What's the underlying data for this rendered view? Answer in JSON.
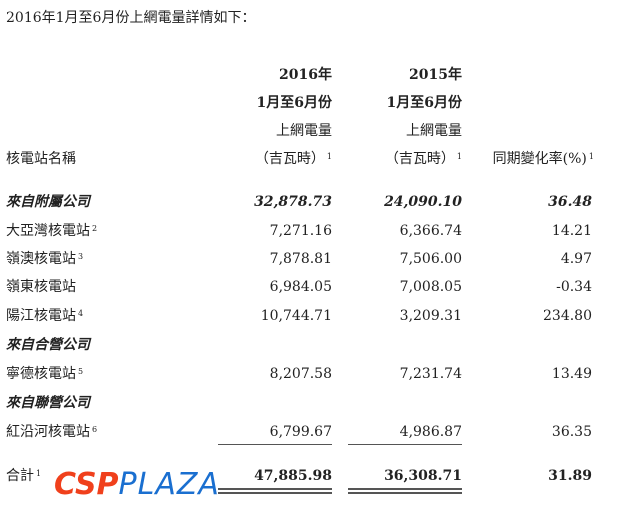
{
  "intro": "2016年1月至6月份上網電量詳情如下：",
  "headers": {
    "name": "核電站名稱",
    "col2016": [
      "2016年",
      "1月至6月份",
      "上網電量",
      "（吉瓦時）"
    ],
    "col2015": [
      "2015年",
      "1月至6月份",
      "上網電量",
      "（吉瓦時）"
    ],
    "change": "同期變化率(%)",
    "footnote": "1"
  },
  "rows": [
    {
      "name": "來自附屬公司",
      "note": "",
      "v2016": "32,878.73",
      "v2015": "24,090.10",
      "change": "36.48",
      "group": true
    },
    {
      "name": "大亞灣核電站",
      "note": "2",
      "v2016": "7,271.16",
      "v2015": "6,366.74",
      "change": "14.21"
    },
    {
      "name": "嶺澳核電站",
      "note": "3",
      "v2016": "7,878.81",
      "v2015": "7,506.00",
      "change": "4.97"
    },
    {
      "name": "嶺東核電站",
      "note": "",
      "v2016": "6,984.05",
      "v2015": "7,008.05",
      "change": "-0.34"
    },
    {
      "name": "陽江核電站",
      "note": "4",
      "v2016": "10,744.71",
      "v2015": "3,209.31",
      "change": "234.80"
    },
    {
      "name": "來自合營公司",
      "note": "",
      "v2016": "",
      "v2015": "",
      "change": "",
      "group": true
    },
    {
      "name": "寧德核電站",
      "note": "5",
      "v2016": "8,207.58",
      "v2015": "7,231.74",
      "change": "13.49"
    },
    {
      "name": "來自聯營公司",
      "note": "",
      "v2016": "",
      "v2015": "",
      "change": "",
      "group": true
    },
    {
      "name": "紅沿河核電站",
      "note": "6",
      "v2016": "6,799.67",
      "v2015": "4,986.87",
      "change": "36.35"
    }
  ],
  "total": {
    "name": "合計",
    "note": "1",
    "v2016": "47,885.98",
    "v2015": "36,308.71",
    "change": "31.89"
  },
  "watermark": {
    "brand": "CSP",
    "suffix": "PLAZA",
    "brand_color": "#f0401c",
    "suffix_color": "#1a6fd0"
  }
}
